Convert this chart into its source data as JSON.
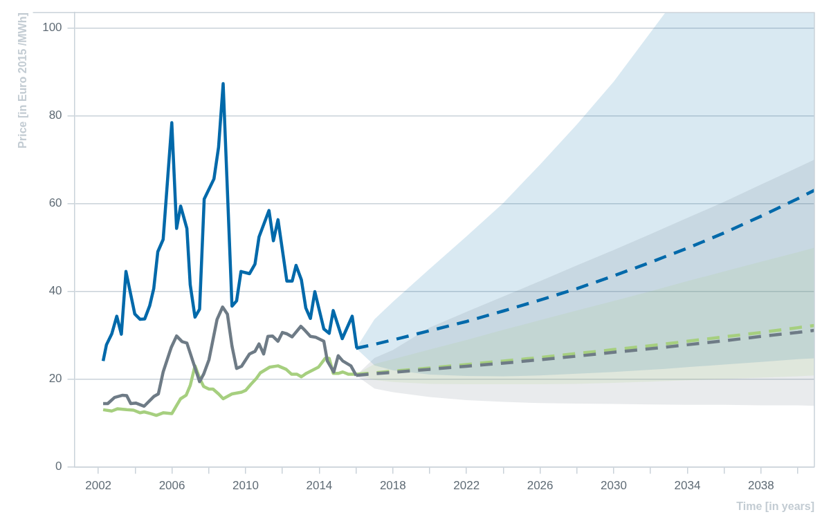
{
  "chart_data": {
    "type": "line",
    "xlabel": "Time [in years]",
    "ylabel": "Price [in Euro 2015 /MWh]",
    "xlim": [
      2000.7,
      2040.9
    ],
    "ylim": [
      0,
      103.5
    ],
    "xticks": [
      2002,
      {
        "value": 2004,
        "label": null
      },
      2006,
      {
        "value": 2008,
        "label": null
      },
      2010,
      {
        "value": 2012,
        "label": null
      },
      2014,
      {
        "value": 2016,
        "label": null
      },
      2018,
      {
        "value": 2020,
        "label": null
      },
      2022,
      {
        "value": 2024,
        "label": null
      },
      2026,
      {
        "value": 2028,
        "label": null
      },
      2030,
      {
        "value": 2032,
        "label": null
      },
      2034,
      {
        "value": 2036,
        "label": null
      },
      2038,
      {
        "value": 2040,
        "label": null
      }
    ],
    "yticks": [
      0,
      20,
      40,
      60,
      80,
      100
    ],
    "grid": "y",
    "series": [
      {
        "color": "#0069aa",
        "line_style": "solid",
        "x": [
          2002.26,
          2002.44,
          2002.73,
          2003.0,
          2003.25,
          2003.5,
          2003.98,
          2004.27,
          2004.52,
          2004.79,
          2005.01,
          2005.23,
          2005.52,
          2005.99,
          2006.25,
          2006.47,
          2006.81,
          2006.99,
          2007.25,
          2007.5,
          2007.75,
          2008.28,
          2008.53,
          2008.78,
          2009.26,
          2009.51,
          2009.75,
          2010.21,
          2010.51,
          2010.73,
          2011.27,
          2011.51,
          2011.76,
          2012.05,
          2012.24,
          2012.53,
          2012.74,
          2013.03,
          2013.27,
          2013.52,
          2013.76,
          2014.25,
          2014.54,
          2014.76,
          2015.25,
          2015.79,
          2016.04
        ],
        "values": [
          24.1,
          27.8,
          30.3,
          34.3,
          30.2,
          44.5,
          34.8,
          33.6,
          33.7,
          36.7,
          40.6,
          49.0,
          51.8,
          78.4,
          54.3,
          59.4,
          54.3,
          41.5,
          34.1,
          35.9,
          61.0,
          65.6,
          72.8,
          87.3,
          36.6,
          37.8,
          44.5,
          44.0,
          46.2,
          52.4,
          58.4,
          51.5,
          56.3,
          47.9,
          42.3,
          42.3,
          45.9,
          42.6,
          36.2,
          33.8,
          39.9,
          31.4,
          30.4,
          35.6,
          29.2,
          34.3,
          27.0
        ]
      },
      {
        "color": "#6e7b86",
        "line_style": "solid",
        "x": [
          2002.26,
          2002.51,
          2002.88,
          2003.32,
          2003.54,
          2003.76,
          2004.05,
          2004.49,
          2005.01,
          2005.26,
          2005.52,
          2005.96,
          2006.25,
          2006.55,
          2006.81,
          2007.13,
          2007.5,
          2007.72,
          2008.01,
          2008.45,
          2008.75,
          2009.01,
          2009.26,
          2009.51,
          2009.78,
          2010.21,
          2010.51,
          2010.73,
          2010.98,
          2011.21,
          2011.46,
          2011.76,
          2012.0,
          2012.24,
          2012.53,
          2013.0,
          2013.22,
          2013.52,
          2013.81,
          2014.25,
          2014.44,
          2014.79,
          2015.03,
          2015.28,
          2015.72,
          2016.01
        ],
        "values": [
          14.4,
          14.4,
          15.8,
          16.3,
          16.2,
          14.4,
          14.5,
          13.8,
          16.0,
          16.6,
          21.6,
          27.2,
          29.8,
          28.5,
          28.2,
          24.1,
          19.4,
          21.1,
          24.4,
          33.6,
          36.4,
          34.8,
          27.5,
          22.4,
          22.9,
          25.7,
          26.3,
          28.0,
          25.7,
          29.7,
          29.8,
          28.6,
          30.6,
          30.3,
          29.6,
          32.0,
          31.1,
          29.7,
          29.5,
          28.6,
          24.1,
          21.6,
          25.3,
          24.1,
          23.0,
          20.8
        ]
      },
      {
        "color": "#a6cf7f",
        "line_style": "solid",
        "x": [
          2002.26,
          2002.73,
          2003.03,
          2003.54,
          2003.91,
          2004.27,
          2004.49,
          2004.86,
          2005.15,
          2005.52,
          2005.99,
          2006.47,
          2006.77,
          2006.99,
          2007.25,
          2007.5,
          2007.72,
          2008.01,
          2008.23,
          2008.53,
          2008.78,
          2009.26,
          2009.78,
          2010.0,
          2010.29,
          2010.58,
          2010.8,
          2011.31,
          2011.76,
          2012.2,
          2012.49,
          2012.78,
          2013.03,
          2013.3,
          2013.96,
          2014.32,
          2014.54,
          2014.76,
          2015.06,
          2015.28,
          2015.57,
          2016.01
        ],
        "values": [
          13.0,
          12.7,
          13.2,
          13.0,
          12.9,
          12.3,
          12.5,
          12.1,
          11.7,
          12.3,
          12.1,
          15.5,
          16.3,
          18.5,
          23.0,
          20.2,
          18.3,
          17.7,
          17.7,
          16.6,
          15.5,
          16.6,
          17.0,
          17.4,
          18.8,
          20.1,
          21.4,
          22.7,
          23.0,
          22.2,
          21.1,
          21.1,
          20.5,
          21.3,
          22.7,
          24.7,
          24.7,
          21.3,
          21.3,
          21.6,
          21.1,
          21.1
        ]
      },
      {
        "color": "#0069aa",
        "line_style": "dashed",
        "x": [
          2016,
          2017,
          2018,
          2020,
          2022,
          2024,
          2026,
          2028,
          2030,
          2032,
          2032.8,
          2034,
          2036,
          2038,
          2040,
          2040.9
        ],
        "values": [
          27,
          27.9,
          28.9,
          31.0,
          33.1,
          35.5,
          38.0,
          40.6,
          43.5,
          46.6,
          47.9,
          49.8,
          53.3,
          57.1,
          61.1,
          63.0
        ],
        "lower": [
          27,
          23.1,
          22.0,
          21.0,
          20.7,
          20.6,
          20.8,
          21.2,
          21.6,
          22.1,
          22.3,
          22.7,
          23.3,
          23.9,
          24.5,
          24.7
        ],
        "upper": [
          27,
          33.6,
          37.6,
          45.1,
          52.5,
          60.1,
          68.9,
          78.0,
          87.8,
          99.0,
          103.5,
          103.5,
          103.5,
          103.5,
          103.5,
          103.5
        ]
      },
      {
        "color": "#6e7b86",
        "line_style": "dashed",
        "x": [
          2016,
          2017,
          2018,
          2020,
          2022,
          2024,
          2026,
          2028,
          2030,
          2032,
          2034,
          2036,
          2038,
          2040,
          2040.9
        ],
        "values": [
          20.8,
          21.2,
          21.5,
          22.2,
          22.9,
          23.6,
          24.4,
          25.2,
          26.1,
          26.9,
          27.8,
          28.7,
          29.7,
          30.6,
          31.1
        ],
        "lower": [
          20.8,
          17.8,
          17.0,
          15.9,
          15.2,
          14.8,
          14.5,
          14.4,
          14.3,
          14.2,
          14.1,
          14.1,
          14.0,
          14.0,
          13.9
        ],
        "upper": [
          20.8,
          24.8,
          26.6,
          31.7,
          35.3,
          38.8,
          42.3,
          45.9,
          49.4,
          53.0,
          56.7,
          60.4,
          64.3,
          68.2,
          70.0
        ]
      },
      {
        "color": "#a6cf7f",
        "line_style": "dashed",
        "x": [
          2016,
          2017,
          2018,
          2020,
          2022,
          2024,
          2026,
          2028,
          2030,
          2032,
          2034,
          2036,
          2038,
          2040,
          2040.9
        ],
        "values": [
          21.1,
          21.4,
          21.8,
          22.5,
          23.3,
          24.1,
          24.9,
          25.8,
          26.7,
          27.6,
          28.6,
          29.6,
          30.6,
          31.7,
          32.2
        ],
        "lower": [
          21.1,
          19.8,
          19.3,
          18.9,
          18.8,
          18.8,
          18.8,
          18.9,
          19.1,
          19.4,
          19.7,
          20.0,
          20.3,
          20.6,
          20.8
        ],
        "upper": [
          21.1,
          23.4,
          24.5,
          26.7,
          28.9,
          31.2,
          33.4,
          35.6,
          37.8,
          40.0,
          42.3,
          44.5,
          46.7,
          48.9,
          49.9
        ]
      }
    ]
  }
}
